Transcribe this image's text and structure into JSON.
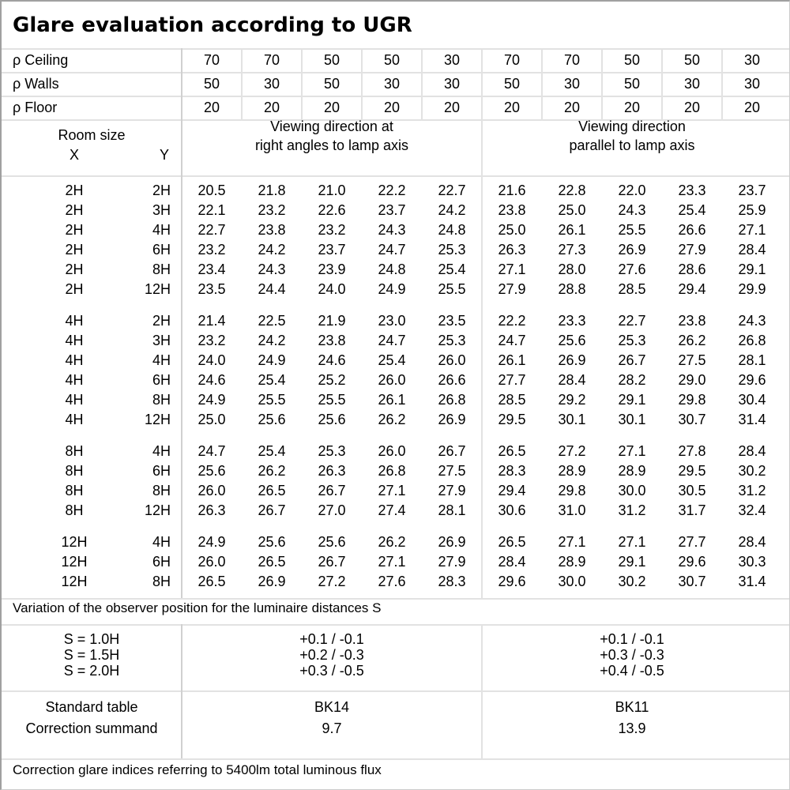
{
  "title": "Glare evaluation according to UGR",
  "reflectances": [
    {
      "label": "ρ Ceiling",
      "values": [
        "70",
        "70",
        "50",
        "50",
        "30",
        "70",
        "70",
        "50",
        "50",
        "30"
      ]
    },
    {
      "label": "ρ Walls",
      "values": [
        "50",
        "30",
        "50",
        "30",
        "30",
        "50",
        "30",
        "50",
        "30",
        "30"
      ]
    },
    {
      "label": "ρ Floor",
      "values": [
        "20",
        "20",
        "20",
        "20",
        "20",
        "20",
        "20",
        "20",
        "20",
        "20"
      ]
    }
  ],
  "header": {
    "room_size": "Room size",
    "x": "X",
    "y": "Y",
    "dir_right_1": "Viewing direction at",
    "dir_right_2": "right angles to lamp axis",
    "dir_parallel_1": "Viewing direction",
    "dir_parallel_2": "parallel to lamp axis"
  },
  "groups": [
    {
      "rows": [
        {
          "x": "2H",
          "y": "2H",
          "v": [
            "20.5",
            "21.8",
            "21.0",
            "22.2",
            "22.7",
            "21.6",
            "22.8",
            "22.0",
            "23.3",
            "23.7"
          ]
        },
        {
          "x": "2H",
          "y": "3H",
          "v": [
            "22.1",
            "23.2",
            "22.6",
            "23.7",
            "24.2",
            "23.8",
            "25.0",
            "24.3",
            "25.4",
            "25.9"
          ]
        },
        {
          "x": "2H",
          "y": "4H",
          "v": [
            "22.7",
            "23.8",
            "23.2",
            "24.3",
            "24.8",
            "25.0",
            "26.1",
            "25.5",
            "26.6",
            "27.1"
          ]
        },
        {
          "x": "2H",
          "y": "6H",
          "v": [
            "23.2",
            "24.2",
            "23.7",
            "24.7",
            "25.3",
            "26.3",
            "27.3",
            "26.9",
            "27.9",
            "28.4"
          ]
        },
        {
          "x": "2H",
          "y": "8H",
          "v": [
            "23.4",
            "24.3",
            "23.9",
            "24.8",
            "25.4",
            "27.1",
            "28.0",
            "27.6",
            "28.6",
            "29.1"
          ]
        },
        {
          "x": "2H",
          "y": "12H",
          "v": [
            "23.5",
            "24.4",
            "24.0",
            "24.9",
            "25.5",
            "27.9",
            "28.8",
            "28.5",
            "29.4",
            "29.9"
          ]
        }
      ]
    },
    {
      "rows": [
        {
          "x": "4H",
          "y": "2H",
          "v": [
            "21.4",
            "22.5",
            "21.9",
            "23.0",
            "23.5",
            "22.2",
            "23.3",
            "22.7",
            "23.8",
            "24.3"
          ]
        },
        {
          "x": "4H",
          "y": "3H",
          "v": [
            "23.2",
            "24.2",
            "23.8",
            "24.7",
            "25.3",
            "24.7",
            "25.6",
            "25.3",
            "26.2",
            "26.8"
          ]
        },
        {
          "x": "4H",
          "y": "4H",
          "v": [
            "24.0",
            "24.9",
            "24.6",
            "25.4",
            "26.0",
            "26.1",
            "26.9",
            "26.7",
            "27.5",
            "28.1"
          ]
        },
        {
          "x": "4H",
          "y": "6H",
          "v": [
            "24.6",
            "25.4",
            "25.2",
            "26.0",
            "26.6",
            "27.7",
            "28.4",
            "28.2",
            "29.0",
            "29.6"
          ]
        },
        {
          "x": "4H",
          "y": "8H",
          "v": [
            "24.9",
            "25.5",
            "25.5",
            "26.1",
            "26.8",
            "28.5",
            "29.2",
            "29.1",
            "29.8",
            "30.4"
          ]
        },
        {
          "x": "4H",
          "y": "12H",
          "v": [
            "25.0",
            "25.6",
            "25.6",
            "26.2",
            "26.9",
            "29.5",
            "30.1",
            "30.1",
            "30.7",
            "31.4"
          ]
        }
      ]
    },
    {
      "rows": [
        {
          "x": "8H",
          "y": "4H",
          "v": [
            "24.7",
            "25.4",
            "25.3",
            "26.0",
            "26.7",
            "26.5",
            "27.2",
            "27.1",
            "27.8",
            "28.4"
          ]
        },
        {
          "x": "8H",
          "y": "6H",
          "v": [
            "25.6",
            "26.2",
            "26.3",
            "26.8",
            "27.5",
            "28.3",
            "28.9",
            "28.9",
            "29.5",
            "30.2"
          ]
        },
        {
          "x": "8H",
          "y": "8H",
          "v": [
            "26.0",
            "26.5",
            "26.7",
            "27.1",
            "27.9",
            "29.4",
            "29.8",
            "30.0",
            "30.5",
            "31.2"
          ]
        },
        {
          "x": "8H",
          "y": "12H",
          "v": [
            "26.3",
            "26.7",
            "27.0",
            "27.4",
            "28.1",
            "30.6",
            "31.0",
            "31.2",
            "31.7",
            "32.4"
          ]
        }
      ]
    },
    {
      "rows": [
        {
          "x": "12H",
          "y": "4H",
          "v": [
            "24.9",
            "25.6",
            "25.6",
            "26.2",
            "26.9",
            "26.5",
            "27.1",
            "27.1",
            "27.7",
            "28.4"
          ]
        },
        {
          "x": "12H",
          "y": "6H",
          "v": [
            "26.0",
            "26.5",
            "26.7",
            "27.1",
            "27.9",
            "28.4",
            "28.9",
            "29.1",
            "29.6",
            "30.3"
          ]
        },
        {
          "x": "12H",
          "y": "8H",
          "v": [
            "26.5",
            "26.9",
            "27.2",
            "27.6",
            "28.3",
            "29.6",
            "30.0",
            "30.2",
            "30.7",
            "31.4"
          ]
        }
      ]
    }
  ],
  "variation": {
    "label": "Variation of the observer position for the luminaire distances S",
    "rows": [
      {
        "s": "S = 1.0H",
        "right": "+0.1 / -0.1",
        "parallel": "+0.1 / -0.1"
      },
      {
        "s": "S = 1.5H",
        "right": "+0.2 / -0.3",
        "parallel": "+0.3 / -0.3"
      },
      {
        "s": "S = 2.0H",
        "right": "+0.3 / -0.5",
        "parallel": "+0.4 / -0.5"
      }
    ]
  },
  "standard": {
    "table_label": "Standard table",
    "summand_label": "Correction summand",
    "right_table": "BK14",
    "right_summand": "9.7",
    "parallel_table": "BK11",
    "parallel_summand": "13.9"
  },
  "footer": "Correction glare indices referring to 5400lm total luminous flux"
}
